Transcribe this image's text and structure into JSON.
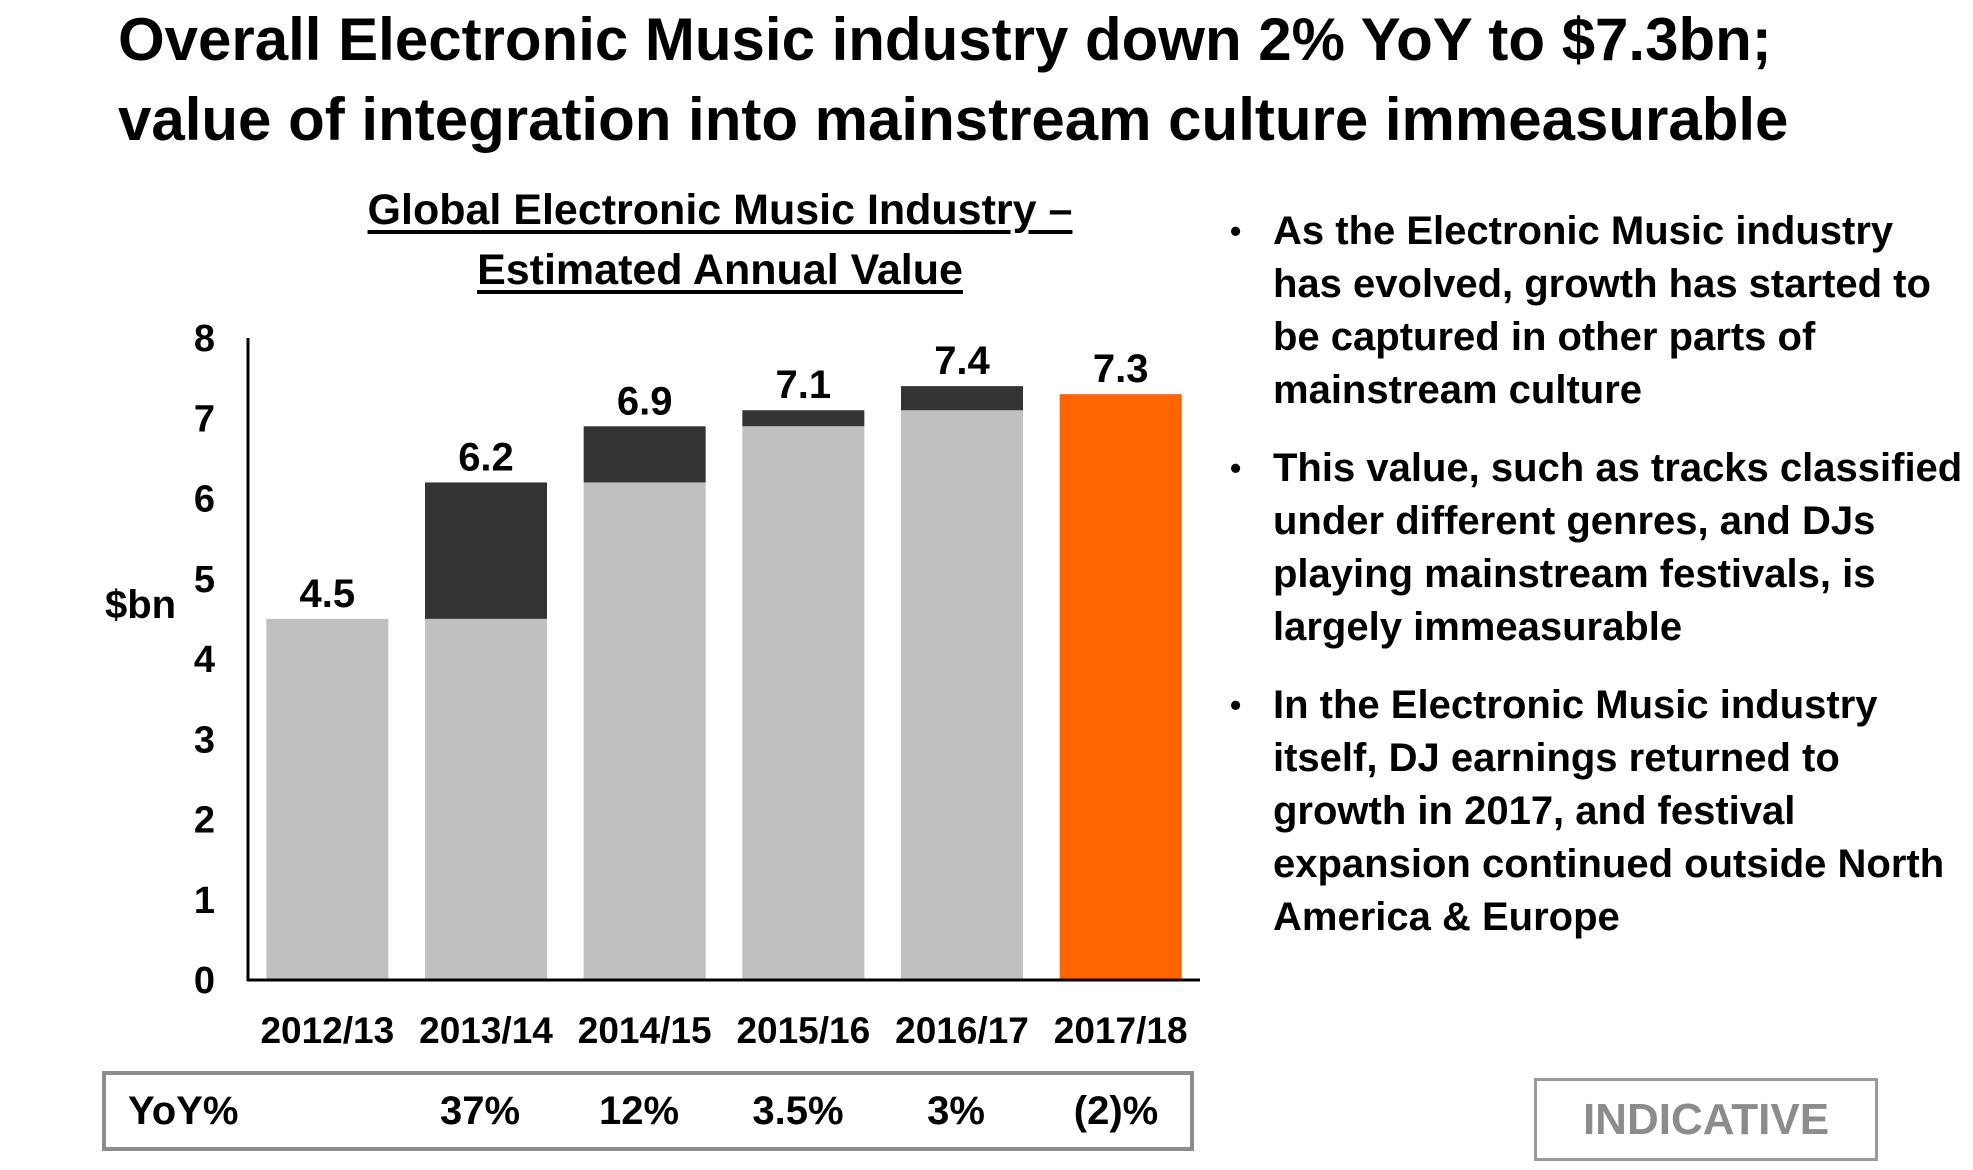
{
  "page": {
    "title_line1": "Overall Electronic Music industry down 2% YoY to $7.3bn;",
    "title_line2": "value of integration into mainstream culture immeasurable"
  },
  "chart_data": {
    "type": "bar",
    "title_line1": "Global Electronic Music Industry –",
    "title_line2": "Estimated Annual Value",
    "xlabel": "",
    "ylabel": "$bn",
    "ylim": [
      0,
      8
    ],
    "yticks": [
      0,
      1,
      2,
      3,
      4,
      5,
      6,
      7,
      8
    ],
    "grid": false,
    "legend": "none",
    "categories": [
      "2012/13",
      "2013/14",
      "2014/15",
      "2015/16",
      "2016/17",
      "2017/18"
    ],
    "totals": [
      4.5,
      6.2,
      6.9,
      7.1,
      7.4,
      7.3
    ],
    "total_labels": [
      "4.5",
      "6.2",
      "6.9",
      "7.1",
      "7.4",
      "7.3"
    ],
    "series": [
      {
        "values": [
          4.5,
          4.5,
          6.2,
          6.9,
          7.1,
          null
        ],
        "color": "#c0c0c0"
      },
      {
        "values": [
          0,
          1.7,
          0.7,
          0.2,
          0.3,
          null
        ],
        "color": "#333333"
      },
      {
        "values": [
          null,
          null,
          null,
          null,
          null,
          7.3
        ],
        "color": "#ff6600"
      }
    ]
  },
  "yoy": {
    "label": "YoY%",
    "values": [
      "37%",
      "12%",
      "3.5%",
      "3%",
      "(2)%"
    ]
  },
  "bullets": [
    {
      "marker": "•",
      "text": "As the Electronic Music industry has evolved, growth has started to be captured in other parts of mainstream culture"
    },
    {
      "marker": "•",
      "text": "This value, such as tracks classified under different genres, and DJs playing mainstream festivals, is largely immeasurable"
    },
    {
      "marker": "•",
      "text": "In the Electronic Music industry itself, DJ earnings returned to growth in 2017, and festival expansion continued outside North America & Europe"
    }
  ],
  "stamp": {
    "text": "INDICATIVE"
  },
  "colors": {
    "base": "#c0c0c0",
    "increment": "#333333",
    "highlight": "#ff6600",
    "axis": "#000000",
    "frame": "#8c8c8c"
  }
}
